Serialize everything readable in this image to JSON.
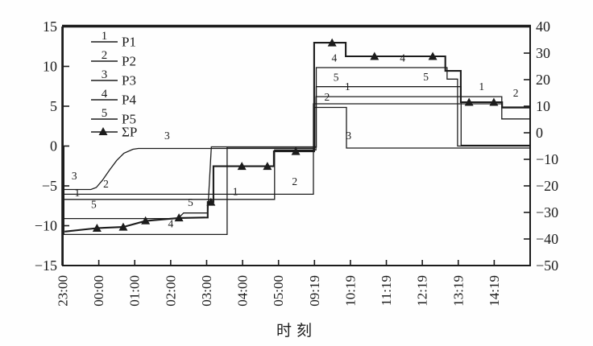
{
  "page": {
    "background": "#fefefe",
    "ink_color": "#1c1c1c",
    "title": ""
  },
  "chart_data": {
    "type": "line",
    "title": "",
    "xlabel": "时刻",
    "ylabel_left": "",
    "ylabel_right": "",
    "grid": false,
    "x_tick_labels": [
      "23:00",
      "00:00",
      "01:00",
      "02:00",
      "03:00",
      "04:00",
      "05:00",
      "09:19",
      "10:19",
      "11:19",
      "12:19",
      "13:19",
      "14:19"
    ],
    "x_units": 13,
    "left_axis": {
      "min": -15,
      "max": 15,
      "ticks": [
        "15",
        "10",
        "5",
        "0",
        "−5",
        "−10",
        "−15"
      ]
    },
    "right_axis": {
      "min": -50,
      "max": 40,
      "ticks": [
        "40",
        "30",
        "20",
        "10",
        "0",
        "−10",
        "−20",
        "−30",
        "−40",
        "−50"
      ]
    },
    "legend": [
      {
        "key": "1",
        "label": "P1",
        "marker": "line"
      },
      {
        "key": "2",
        "label": "P2",
        "marker": "line"
      },
      {
        "key": "3",
        "label": "P3",
        "marker": "line"
      },
      {
        "key": "4",
        "label": "P4",
        "marker": "line"
      },
      {
        "key": "5",
        "label": "P5",
        "marker": "line"
      },
      {
        "key": "",
        "label": "ΣP",
        "marker": "triangle-line"
      }
    ],
    "series": [
      {
        "name": "P1",
        "axis": "left",
        "width": 1.3,
        "points": [
          [
            0.03,
            0
          ],
          [
            0.03,
            -6.7
          ],
          [
            5.89,
            -6.7
          ],
          [
            5.89,
            -0.5
          ],
          [
            7.04,
            -0.5
          ],
          [
            7.04,
            6.2
          ],
          [
            12.21,
            6.2
          ],
          [
            12.21,
            3.4
          ],
          [
            13,
            3.4
          ]
        ]
      },
      {
        "name": "P2",
        "axis": "left",
        "width": 1.3,
        "points": [
          [
            0.03,
            0
          ],
          [
            0.03,
            -6.05
          ],
          [
            6.97,
            -6.05
          ],
          [
            6.97,
            5.3
          ],
          [
            12.22,
            5.3
          ],
          [
            12.22,
            4.9
          ],
          [
            13,
            4.9
          ]
        ]
      },
      {
        "name": "P3",
        "axis": "left",
        "width": 1.3,
        "points": [
          [
            0.03,
            0
          ],
          [
            0.03,
            -5.45
          ],
          [
            0.78,
            -5.45
          ],
          [
            0.93,
            -5.2
          ],
          [
            1.1,
            -4.3
          ],
          [
            1.3,
            -3.0
          ],
          [
            1.5,
            -1.8
          ],
          [
            1.7,
            -0.9
          ],
          [
            1.95,
            -0.4
          ],
          [
            2.1,
            -0.3
          ],
          [
            7.0,
            -0.3
          ],
          [
            7.0,
            4.85
          ],
          [
            7.89,
            4.85
          ],
          [
            7.89,
            -0.25
          ],
          [
            13,
            -0.25
          ]
        ]
      },
      {
        "name": "P4",
        "axis": "left",
        "width": 1.3,
        "points": [
          [
            0.03,
            0
          ],
          [
            0.03,
            -11.1
          ],
          [
            4.57,
            -11.1
          ],
          [
            4.57,
            -0.15
          ],
          [
            7.05,
            -0.15
          ],
          [
            7.05,
            9.85
          ],
          [
            10.69,
            9.85
          ],
          [
            10.69,
            8.4
          ],
          [
            10.98,
            8.4
          ],
          [
            10.98,
            0
          ],
          [
            13,
            0
          ]
        ]
      },
      {
        "name": "P5",
        "axis": "left",
        "width": 1.3,
        "points": [
          [
            0.03,
            0
          ],
          [
            0.03,
            -9.1
          ],
          [
            3.2,
            -9.1
          ],
          [
            3.36,
            -8.4
          ],
          [
            4.03,
            -8.4
          ],
          [
            4.13,
            -0.1
          ],
          [
            7.05,
            -0.1
          ],
          [
            7.05,
            7.45
          ],
          [
            11.08,
            7.45
          ],
          [
            11.08,
            0.1
          ],
          [
            13,
            0.1
          ]
        ]
      },
      {
        "name": "ΣP",
        "axis": "right",
        "width": 2.1,
        "points": [
          [
            0.05,
            -37.2
          ],
          [
            0.95,
            -35.9
          ],
          [
            1.68,
            -35.5
          ],
          [
            2.3,
            -33.2
          ],
          [
            3.23,
            -32.1
          ],
          [
            4.03,
            -31.9
          ],
          [
            4.03,
            -26.1
          ],
          [
            4.19,
            -26.1
          ],
          [
            4.19,
            -12.6
          ],
          [
            5.87,
            -12.6
          ],
          [
            5.87,
            -7.0
          ],
          [
            6.99,
            -7.0
          ],
          [
            6.99,
            33.9
          ],
          [
            7.87,
            33.9
          ],
          [
            7.87,
            28.8
          ],
          [
            10.64,
            28.8
          ],
          [
            10.64,
            23.3
          ],
          [
            11.07,
            23.3
          ],
          [
            11.07,
            11.5
          ],
          [
            12.22,
            11.5
          ],
          [
            12.22,
            9.5
          ],
          [
            13,
            9.5
          ]
        ],
        "markers": [
          [
            0.95,
            -35.9
          ],
          [
            1.68,
            -35.5
          ],
          [
            2.3,
            -33.1
          ],
          [
            3.23,
            -32.0
          ],
          [
            4.12,
            -26.1
          ],
          [
            4.98,
            -12.6
          ],
          [
            5.69,
            -12.6
          ],
          [
            6.48,
            -7.0
          ],
          [
            7.49,
            33.9
          ],
          [
            8.67,
            28.8
          ],
          [
            10.29,
            28.8
          ],
          [
            11.3,
            11.5
          ],
          [
            11.99,
            11.5
          ]
        ]
      }
    ],
    "curve_labels": [
      {
        "text": "3",
        "t": 0.32,
        "v": -4.2
      },
      {
        "text": "2",
        "t": 1.2,
        "v": -5.2
      },
      {
        "text": "1",
        "t": 0.4,
        "v": -6.3
      },
      {
        "text": "5",
        "t": 0.86,
        "v": -7.8
      },
      {
        "text": "4",
        "t": 3.0,
        "v": -10.2
      },
      {
        "text": "3",
        "t": 2.9,
        "v": 0.85
      },
      {
        "text": "5",
        "t": 3.55,
        "v": -7.5
      },
      {
        "text": "1",
        "t": 4.8,
        "v": -6.15
      },
      {
        "text": "2",
        "t": 6.45,
        "v": -4.9
      },
      {
        "text": "2",
        "t": 7.35,
        "v": 5.7
      },
      {
        "text": "1",
        "t": 7.92,
        "v": 7.0
      },
      {
        "text": "4",
        "t": 7.55,
        "v": 10.6
      },
      {
        "text": "5",
        "t": 7.6,
        "v": 8.2
      },
      {
        "text": "3",
        "t": 7.95,
        "v": 0.85
      },
      {
        "text": "4",
        "t": 9.45,
        "v": 10.6
      },
      {
        "text": "5",
        "t": 10.1,
        "v": 8.25
      },
      {
        "text": "1",
        "t": 11.65,
        "v": 7.0
      },
      {
        "text": "2",
        "t": 12.6,
        "v": 6.2
      }
    ]
  }
}
